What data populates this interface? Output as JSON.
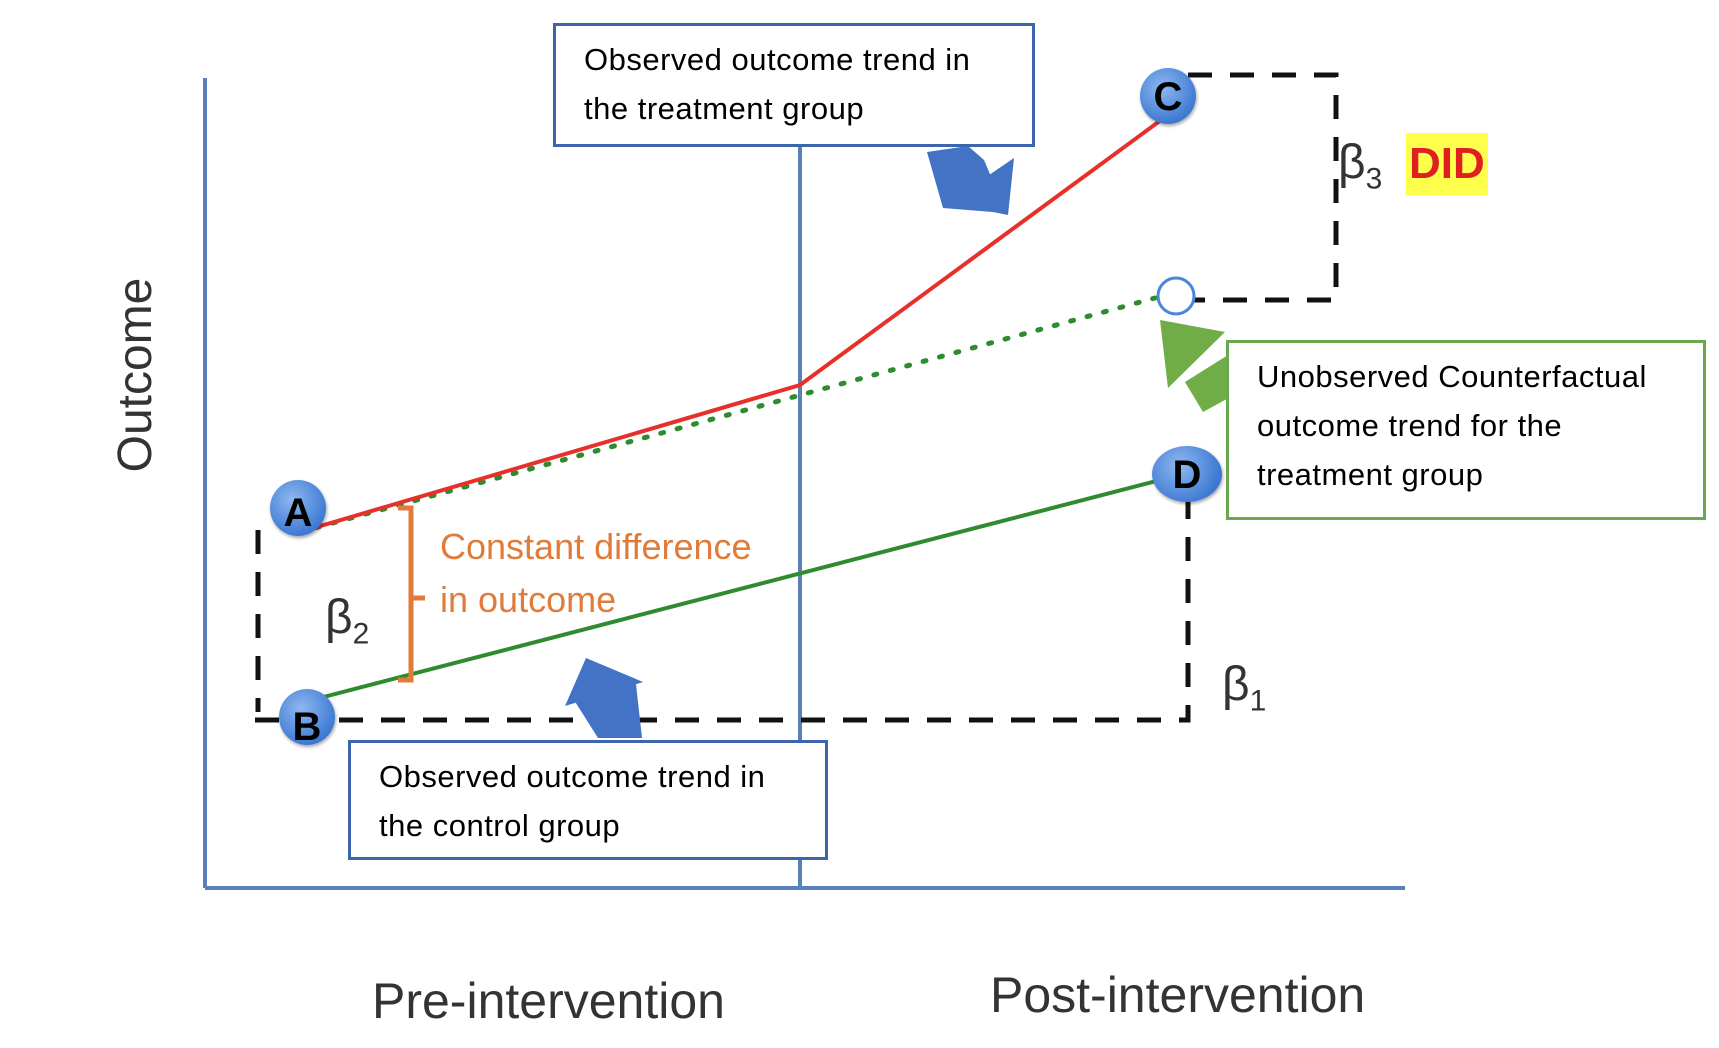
{
  "axes": {
    "y_label": "Outcome",
    "x_labels": [
      "Pre-intervention",
      "Post-intervention"
    ]
  },
  "points": [
    {
      "id": "A",
      "label": "A",
      "group": "treatment",
      "period": "pre"
    },
    {
      "id": "B",
      "label": "B",
      "group": "control",
      "period": "pre"
    },
    {
      "id": "C",
      "label": "C",
      "group": "treatment",
      "period": "post"
    },
    {
      "id": "D",
      "label": "D",
      "group": "control",
      "period": "post"
    }
  ],
  "edges": [
    {
      "from": "A",
      "to": "C",
      "type": "observed-treatment-trend",
      "color": "#e8302b"
    },
    {
      "from": "B",
      "to": "D",
      "type": "observed-control-trend",
      "color": "#2e8b2e"
    },
    {
      "from": "A",
      "to": "counterfactual",
      "type": "counterfactual-trend",
      "style": "dotted",
      "color": "#2e8b2e"
    }
  ],
  "annotations": {
    "beta1": {
      "symbol": "β",
      "subscript": "1"
    },
    "beta2": {
      "symbol": "β",
      "subscript": "2"
    },
    "beta3": {
      "symbol": "β",
      "subscript": "3"
    },
    "did": "DID",
    "constant_difference": [
      "Constant difference",
      "in outcome"
    ]
  },
  "callouts": {
    "treatment": [
      "Observed outcome trend in",
      "the treatment group"
    ],
    "control": [
      "Observed outcome trend in",
      "the control group"
    ],
    "counterfactual": [
      "Unobserved Counterfactual",
      "outcome trend for the",
      "treatment group"
    ]
  },
  "colors": {
    "axis": "#5b7fb9",
    "treatment_line": "#e8302b",
    "control_line": "#2e8b2e",
    "counterfactual": "#2e8b2e",
    "point_fill": "#4a86d8",
    "callout_border_blue": "#3d65ad",
    "callout_border_green": "#6aa84f",
    "arrow_blue": "#4472c4",
    "arrow_green": "#70ad47",
    "constant_difference": "#e07b39",
    "did_text": "#e02020",
    "did_highlight": "#ffff4d"
  }
}
